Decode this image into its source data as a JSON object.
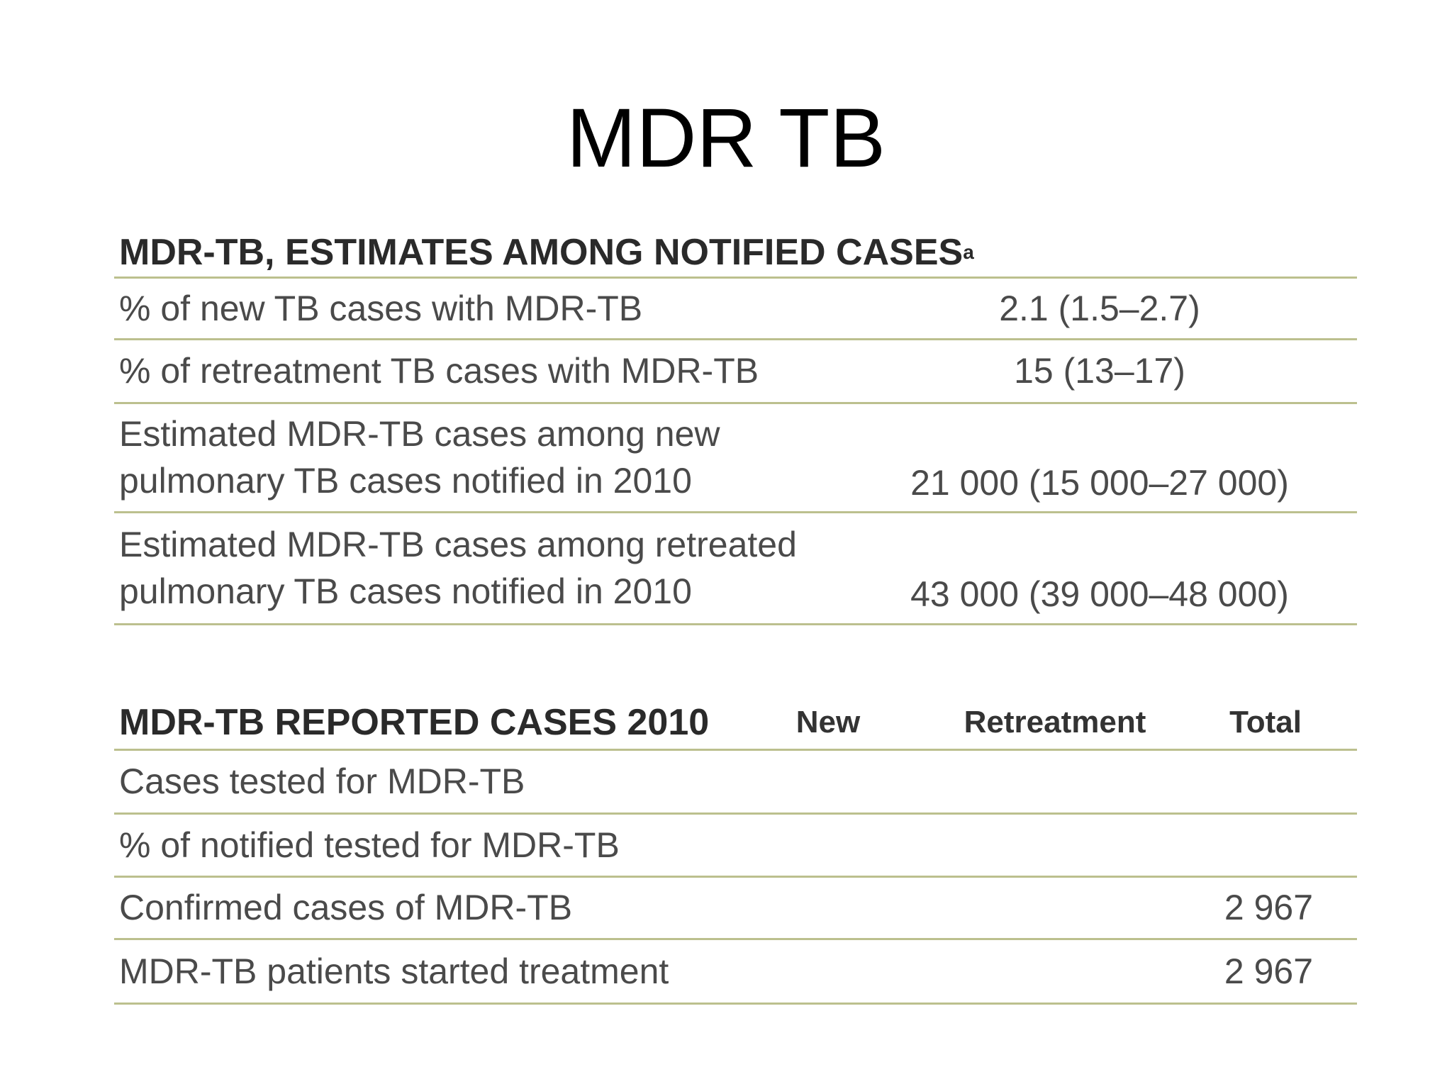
{
  "title": "MDR TB",
  "estimates": {
    "heading": "MDR-TB, ESTIMATES AMONG NOTIFIED CASES",
    "footnote_mark": "a",
    "rows": [
      {
        "lines": [
          "% of new TB cases with MDR-TB"
        ],
        "value": "2.1 (1.5–2.7)"
      },
      {
        "lines": [
          "% of retreatment TB cases with MDR-TB"
        ],
        "value": "15 (13–17)"
      },
      {
        "lines": [
          "Estimated MDR-TB cases among new",
          "pulmonary TB cases notified in 2010"
        ],
        "value": "21 000 (15 000–27 000)"
      },
      {
        "lines": [
          "Estimated MDR-TB cases among retreated",
          "pulmonary TB cases notified in 2010"
        ],
        "value": "43 000 (39 000–48 000)"
      }
    ]
  },
  "reported": {
    "heading": "MDR-TB REPORTED CASES 2010",
    "columns": [
      "New",
      "Retreatment",
      "Total"
    ],
    "rows": [
      {
        "label": "Cases tested for MDR-TB"
      },
      {
        "label": "% of notified tested for MDR-TB"
      },
      {
        "label": "Confirmed cases of MDR-TB",
        "total": "2 967"
      },
      {
        "label": "MDR-TB patients started treatment",
        "total": "2 967"
      }
    ]
  }
}
